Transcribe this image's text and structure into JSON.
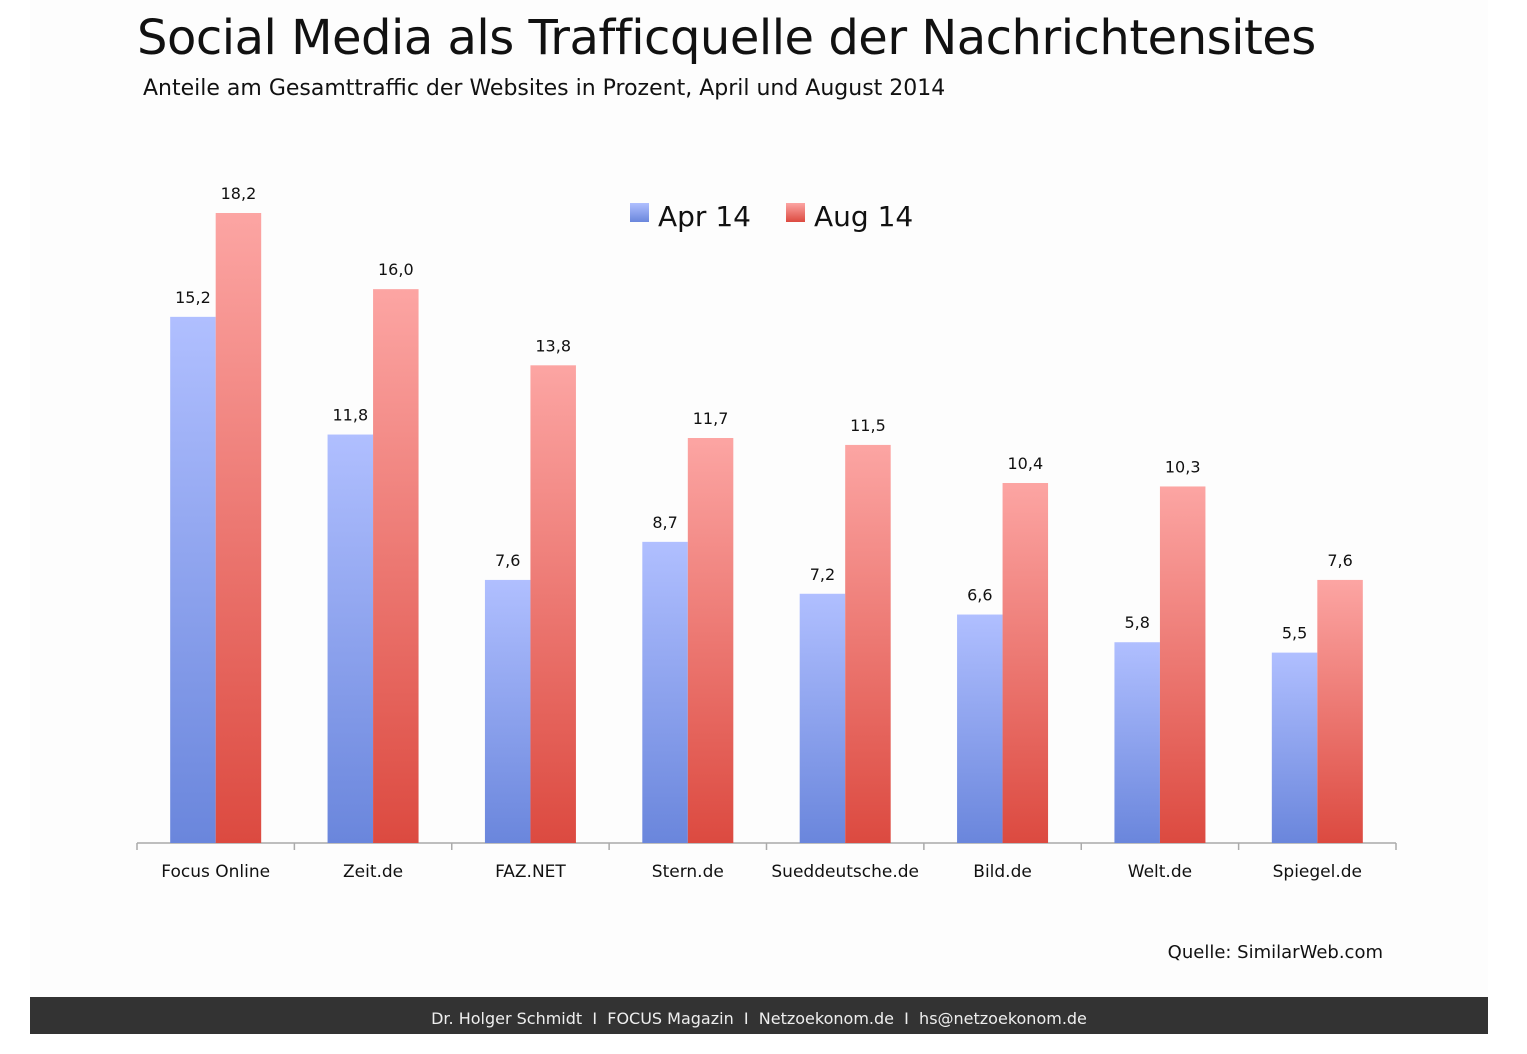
{
  "title": "Social Media als Trafficquelle der Nachrichtensites",
  "subtitle": "Anteile am Gesamttraffic der Websites in Prozent, April und August 2014",
  "source": "Quelle: SimilarWeb.com",
  "footer": "Dr. Holger Schmidt  I  FOCUS Magazin  I  Netzoekonom.de  I  hs@netzoekonom.de",
  "chart_data": {
    "type": "bar",
    "title": "Social Media als Trafficquelle der Nachrichtensites",
    "subtitle": "Anteile am Gesamttraffic der Websites in Prozent, April und August 2014",
    "categories": [
      "Focus Online",
      "Zeit.de",
      "FAZ.NET",
      "Stern.de",
      "Sueddeutsche.de",
      "Bild.de",
      "Welt.de",
      "Spiegel.de"
    ],
    "series": [
      {
        "name": "Apr 14",
        "values": [
          15.2,
          11.8,
          7.6,
          8.7,
          7.2,
          6.6,
          5.8,
          5.5
        ],
        "labels": [
          "15,2",
          "11,8",
          "7,6",
          "8,7",
          "7,2",
          "6,6",
          "5,8",
          "5,5"
        ],
        "color": "#6a86dc",
        "color_light": "#b0bfff"
      },
      {
        "name": "Aug 14",
        "values": [
          18.2,
          16.0,
          13.8,
          11.7,
          11.5,
          10.4,
          10.3,
          7.6
        ],
        "labels": [
          "18,2",
          "16,0",
          "13,8",
          "11,7",
          "11,5",
          "10,4",
          "10,3",
          "7,6"
        ],
        "color": "#dc4a40",
        "color_light": "#fca5a3"
      }
    ],
    "ylim": [
      0,
      18.2
    ],
    "grid": false,
    "legend": "top-center",
    "data_labels": true
  }
}
